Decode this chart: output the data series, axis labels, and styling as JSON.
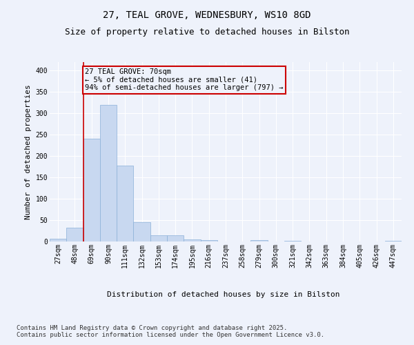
{
  "title_line1": "27, TEAL GROVE, WEDNESBURY, WS10 8GD",
  "title_line2": "Size of property relative to detached houses in Bilston",
  "xlabel": "Distribution of detached houses by size in Bilston",
  "ylabel": "Number of detached properties",
  "bar_color": "#c8d8f0",
  "bar_edge_color": "#8ab0d8",
  "background_color": "#eef2fb",
  "grid_color": "#ffffff",
  "annotation_box_color": "#cc0000",
  "red_line_color": "#cc0000",
  "categories": [
    "27sqm",
    "48sqm",
    "69sqm",
    "90sqm",
    "111sqm",
    "132sqm",
    "153sqm",
    "174sqm",
    "195sqm",
    "216sqm",
    "237sqm",
    "258sqm",
    "279sqm",
    "300sqm",
    "321sqm",
    "342sqm",
    "363sqm",
    "384sqm",
    "405sqm",
    "426sqm",
    "447sqm"
  ],
  "values": [
    7,
    33,
    241,
    320,
    177,
    45,
    15,
    15,
    5,
    4,
    0,
    0,
    4,
    0,
    1,
    0,
    0,
    0,
    0,
    0,
    2
  ],
  "annotation_line1": "27 TEAL GROVE: 70sqm",
  "annotation_line2": "← 5% of detached houses are smaller (41)",
  "annotation_line3": "94% of semi-detached houses are larger (797) →",
  "red_line_x": 1.5,
  "ylim": [
    0,
    420
  ],
  "yticks": [
    0,
    50,
    100,
    150,
    200,
    250,
    300,
    350,
    400
  ],
  "title_fontsize": 10,
  "subtitle_fontsize": 9,
  "axis_label_fontsize": 8,
  "tick_fontsize": 7,
  "annotation_fontsize": 7.5,
  "footnote_fontsize": 6.5
}
